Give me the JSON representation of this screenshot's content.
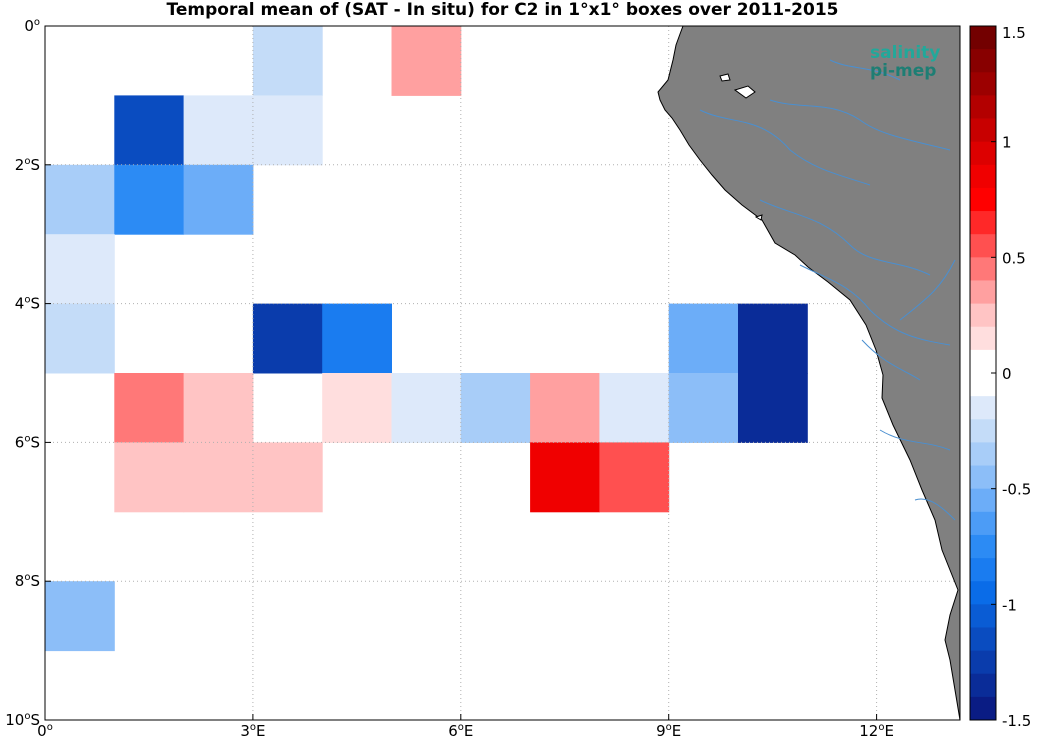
{
  "title": "Temporal mean of (SAT - In situ) for C2 in 1°x1° boxes over 2011-2015",
  "logo": {
    "line1": "salinity",
    "line2": "pi-mep",
    "icon": "satellite-logo-icon"
  },
  "colors": {
    "land": "#808080",
    "river": "#4a8fd0",
    "grid": "#b0b0b0",
    "brand": "#22a89a"
  },
  "chart_data": {
    "type": "heatmap",
    "title": "Temporal mean of (SAT - In situ) for C2 in 1°x1° boxes over 2011-2015",
    "x_range_deg_east": [
      0,
      13.2
    ],
    "y_range_deg_south": [
      0,
      10
    ],
    "grid": true,
    "x_ticks": [
      {
        "v": 0,
        "label": "0",
        "suffix": "o",
        "tail": ""
      },
      {
        "v": 3,
        "label": "3",
        "suffix": "o",
        "tail": "E"
      },
      {
        "v": 6,
        "label": "6",
        "suffix": "o",
        "tail": "E"
      },
      {
        "v": 9,
        "label": "9",
        "suffix": "o",
        "tail": "E"
      },
      {
        "v": 12,
        "label": "12",
        "suffix": "o",
        "tail": "E"
      }
    ],
    "y_ticks": [
      {
        "v": 0,
        "label": "0",
        "suffix": "o",
        "tail": ""
      },
      {
        "v": 2,
        "label": "2",
        "suffix": "o",
        "tail": "S"
      },
      {
        "v": 4,
        "label": "4",
        "suffix": "o",
        "tail": "S"
      },
      {
        "v": 6,
        "label": "6",
        "suffix": "o",
        "tail": "S"
      },
      {
        "v": 8,
        "label": "8",
        "suffix": "o",
        "tail": "S"
      },
      {
        "v": 10,
        "label": "10",
        "suffix": "o",
        "tail": "S"
      }
    ],
    "cells": [
      {
        "lon": 3,
        "lat": 0,
        "value": -0.25
      },
      {
        "lon": 5,
        "lat": 0,
        "value": 0.35
      },
      {
        "lon": 1,
        "lat": 1,
        "value": -1.15
      },
      {
        "lon": 2,
        "lat": 1,
        "value": -0.12
      },
      {
        "lon": 3,
        "lat": 1,
        "value": -0.12
      },
      {
        "lon": 0,
        "lat": 2,
        "value": -0.3
      },
      {
        "lon": 1,
        "lat": 2,
        "value": -0.75
      },
      {
        "lon": 2,
        "lat": 2,
        "value": -0.55
      },
      {
        "lon": 0,
        "lat": 3,
        "value": -0.12
      },
      {
        "lon": 0,
        "lat": 4,
        "value": -0.2
      },
      {
        "lon": 3,
        "lat": 4,
        "value": -1.2
      },
      {
        "lon": 4,
        "lat": 4,
        "value": -0.85
      },
      {
        "lon": 9,
        "lat": 4,
        "value": -0.55
      },
      {
        "lon": 10,
        "lat": 4,
        "value": -1.35
      },
      {
        "lon": 1,
        "lat": 5,
        "value": 0.45
      },
      {
        "lon": 2,
        "lat": 5,
        "value": 0.25
      },
      {
        "lon": 4,
        "lat": 5,
        "value": 0.1
      },
      {
        "lon": 5,
        "lat": 5,
        "value": -0.1
      },
      {
        "lon": 6,
        "lat": 5,
        "value": -0.35
      },
      {
        "lon": 7,
        "lat": 5,
        "value": 0.35
      },
      {
        "lon": 8,
        "lat": 5,
        "value": -0.1
      },
      {
        "lon": 9,
        "lat": 5,
        "value": -0.45
      },
      {
        "lon": 10,
        "lat": 5,
        "value": -1.35
      },
      {
        "lon": 1,
        "lat": 6,
        "value": 0.25
      },
      {
        "lon": 2,
        "lat": 6,
        "value": 0.25
      },
      {
        "lon": 3,
        "lat": 6,
        "value": 0.25
      },
      {
        "lon": 7,
        "lat": 6,
        "value": 0.85
      },
      {
        "lon": 8,
        "lat": 6,
        "value": 0.55
      },
      {
        "lon": 0,
        "lat": 8,
        "value": -0.45
      }
    ],
    "colorbar": {
      "min": -1.5,
      "max": 1.5,
      "tick_values": [
        1.5,
        1,
        0.5,
        0,
        -0.5,
        -1,
        -1.5
      ],
      "tick_labels": [
        "1.5",
        "1",
        "0.5",
        "0",
        "-0.5",
        "-1",
        "-1.5"
      ],
      "colors_top_to_bottom": [
        "#730000",
        "#880000",
        "#9c0000",
        "#b30000",
        "#c80000",
        "#dd0000",
        "#f00000",
        "#ff0000",
        "#ff2828",
        "#ff5050",
        "#ff7878",
        "#ffa0a0",
        "#ffc4c4",
        "#ffdede",
        "#ffffff",
        "#ffffff",
        "#dde9fa",
        "#c4dcf8",
        "#a8cdf8",
        "#8cbef8",
        "#6cadf8",
        "#4c9cf6",
        "#2c8bf4",
        "#1a7cf0",
        "#0a6ce8",
        "#0a5cd4",
        "#0a4cc0",
        "#0a3cac",
        "#0a2c98",
        "#0a1c84"
      ]
    }
  }
}
